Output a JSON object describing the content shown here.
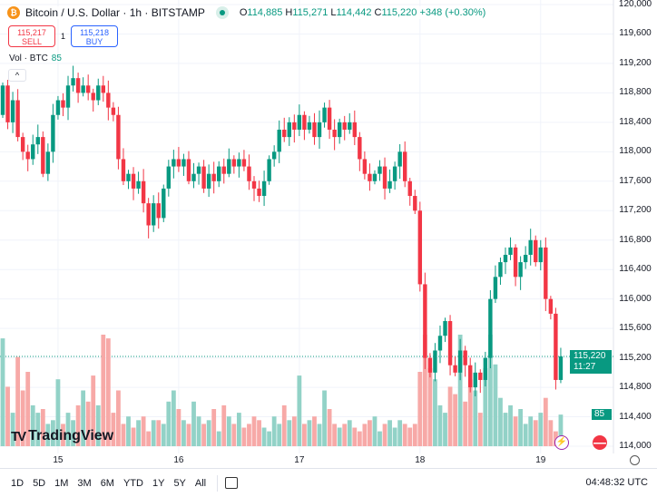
{
  "header": {
    "icon": "bitcoin-icon",
    "title": "Bitcoin / U.S. Dollar · 1h · BITSTAMP",
    "open_label": "O",
    "open": "114,885",
    "high_label": "H",
    "high": "115,271",
    "low_label": "L",
    "low": "114,442",
    "close_label": "C",
    "close": "115,220",
    "change": "+348 (+0.30%)"
  },
  "trade": {
    "sell_price": "115,217",
    "sell_label": "SELL",
    "spread": "1",
    "buy_price": "115,218",
    "buy_label": "BUY"
  },
  "volume_legend": {
    "label": "Vol · BTC",
    "value": "85"
  },
  "brand": "TradingView",
  "price_tag": {
    "price": "115,220",
    "countdown": "11:27"
  },
  "volume_tag": "85",
  "bottom_bar": {
    "ranges": [
      "1D",
      "5D",
      "1M",
      "3M",
      "6M",
      "YTD",
      "1Y",
      "5Y",
      "All"
    ],
    "time": "04:48:32 UTC"
  },
  "colors": {
    "up": "#089981",
    "down": "#f23645",
    "up_vol": "#92d2c7",
    "down_vol": "#f7a9a7"
  },
  "chart_data": {
    "type": "candlestick",
    "ylim": [
      114000,
      120000
    ],
    "y_ticks": [
      "114,000",
      "114,400",
      "114,800",
      "115,200",
      "115,600",
      "116,000",
      "116,400",
      "116,800",
      "117,200",
      "117,600",
      "118,000",
      "118,400",
      "118,800",
      "119,200",
      "119,600",
      "120,000"
    ],
    "x_ticks": [
      {
        "label": "15",
        "index": 11
      },
      {
        "label": "16",
        "index": 35
      },
      {
        "label": "17",
        "index": 59
      },
      {
        "label": "18",
        "index": 83
      },
      {
        "label": "19",
        "index": 107
      }
    ],
    "first_open": 118500,
    "closes": [
      118900,
      118400,
      118700,
      118200,
      118000,
      117900,
      118100,
      118200,
      117700,
      118000,
      118500,
      118700,
      118600,
      118900,
      119000,
      118800,
      118900,
      118800,
      118700,
      118900,
      118800,
      118600,
      118500,
      117900,
      117600,
      117700,
      117500,
      117600,
      117300,
      117000,
      117300,
      117100,
      117500,
      117800,
      117900,
      117800,
      117900,
      117600,
      117700,
      117800,
      117500,
      117700,
      117600,
      117800,
      117700,
      117900,
      117800,
      117900,
      117800,
      117600,
      117500,
      117400,
      117600,
      117900,
      118000,
      118300,
      118200,
      118400,
      118300,
      118500,
      118300,
      118400,
      118200,
      118400,
      118600,
      118300,
      118200,
      118400,
      118300,
      118400,
      118200,
      117900,
      117700,
      117600,
      117700,
      117800,
      117500,
      117600,
      117800,
      118000,
      117600,
      117400,
      117200,
      116200,
      115200,
      115000,
      115300,
      115500,
      115700,
      115100,
      115000,
      115300,
      115100,
      114800,
      115000,
      114900,
      115200,
      116000,
      116300,
      116500,
      116600,
      116700,
      116300,
      116500,
      116600,
      116800,
      116500,
      116700,
      116000,
      115800,
      114900,
      115220
    ],
    "volumes": [
      290,
      160,
      90,
      240,
      150,
      200,
      110,
      90,
      100,
      60,
      70,
      180,
      60,
      90,
      70,
      110,
      150,
      120,
      190,
      110,
      300,
      290,
      90,
      150,
      60,
      80,
      50,
      70,
      80,
      40,
      70,
      70,
      60,
      120,
      150,
      100,
      70,
      60,
      120,
      80,
      60,
      70,
      100,
      40,
      110,
      80,
      60,
      90,
      50,
      60,
      80,
      70,
      50,
      40,
      80,
      60,
      110,
      70,
      80,
      190,
      60,
      70,
      80,
      60,
      150,
      100,
      60,
      50,
      60,
      70,
      50,
      40,
      60,
      70,
      80,
      40,
      60,
      70,
      50,
      70,
      60,
      50,
      60,
      200,
      300,
      210,
      180,
      110,
      90,
      160,
      140,
      300,
      120,
      180,
      150,
      90,
      210,
      300,
      220,
      130,
      90,
      110,
      80,
      100,
      60,
      80,
      70,
      90,
      130,
      70,
      40,
      85
    ],
    "last_price": 115220
  }
}
